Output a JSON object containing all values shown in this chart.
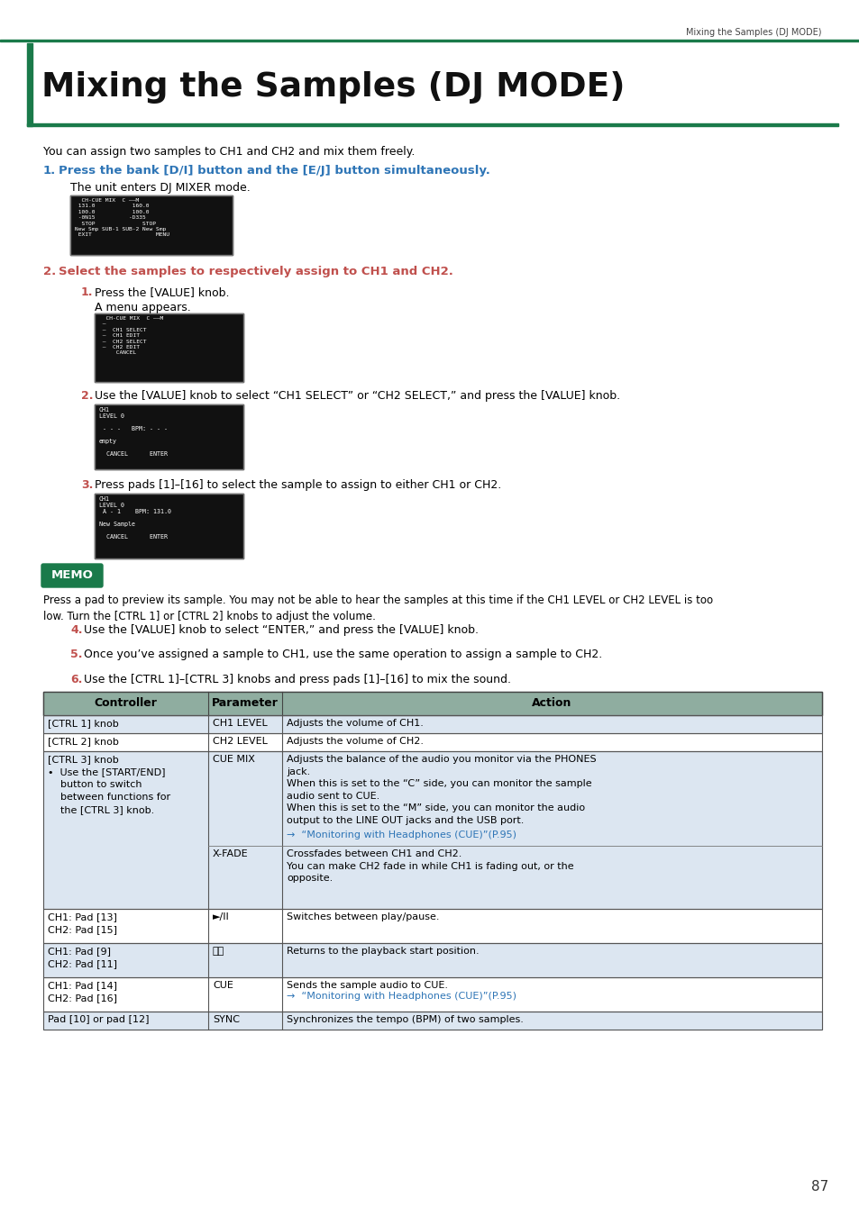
{
  "page_header": "Mixing the Samples (DJ MODE)",
  "title": "Mixing the Samples (DJ MODE)",
  "intro_text": "You can assign two samples to CH1 and CH2 and mix them freely.",
  "step1_num": "1.",
  "step1_text": "Press the bank [D/I] button and the [E/J] button simultaneously.",
  "step1_sub": "The unit enters DJ MIXER mode.",
  "step2_num": "2.",
  "step2_text": "Select the samples to respectively assign to CH1 and CH2.",
  "sub1_num": "1.",
  "sub1_text": "Press the [VALUE] knob.",
  "sub1_sub": "A menu appears.",
  "sub2_num": "2.",
  "sub2_text": "Use the [VALUE] knob to select “CH1 SELECT” or “CH2 SELECT,” and press the [VALUE] knob.",
  "sub3_num": "3.",
  "sub3_text": "Press pads [1]–[16] to select the sample to assign to either CH1 or CH2.",
  "memo_label": "MEMO",
  "memo_text": "Press a pad to preview its sample. You may not be able to hear the samples at this time if the CH1 LEVEL or CH2 LEVEL is too\nlow. Turn the [CTRL 1] or [CTRL 2] knobs to adjust the volume.",
  "step4_num": "4.",
  "step4_text": "Use the [VALUE] knob to select “ENTER,” and press the [VALUE] knob.",
  "step5_num": "5.",
  "step5_text": "Once you’ve assigned a sample to CH1, use the same operation to assign a sample to CH2.",
  "step6_num": "6.",
  "step6_text": "Use the [CTRL 1]–[CTRL 3] knobs and press pads [1]–[16] to mix the sound.",
  "table_header_bg": "#8fada0",
  "table_row_bg_light": "#dce6f1",
  "table_row_bg_white": "#ffffff",
  "table_headers": [
    "Controller",
    "Parameter",
    "Action"
  ],
  "page_number": "87",
  "green_color": "#1a7a4a",
  "blue_color": "#2e75b6",
  "orange_color": "#c0504d",
  "bg_color": "#ffffff",
  "text_color": "#000000"
}
